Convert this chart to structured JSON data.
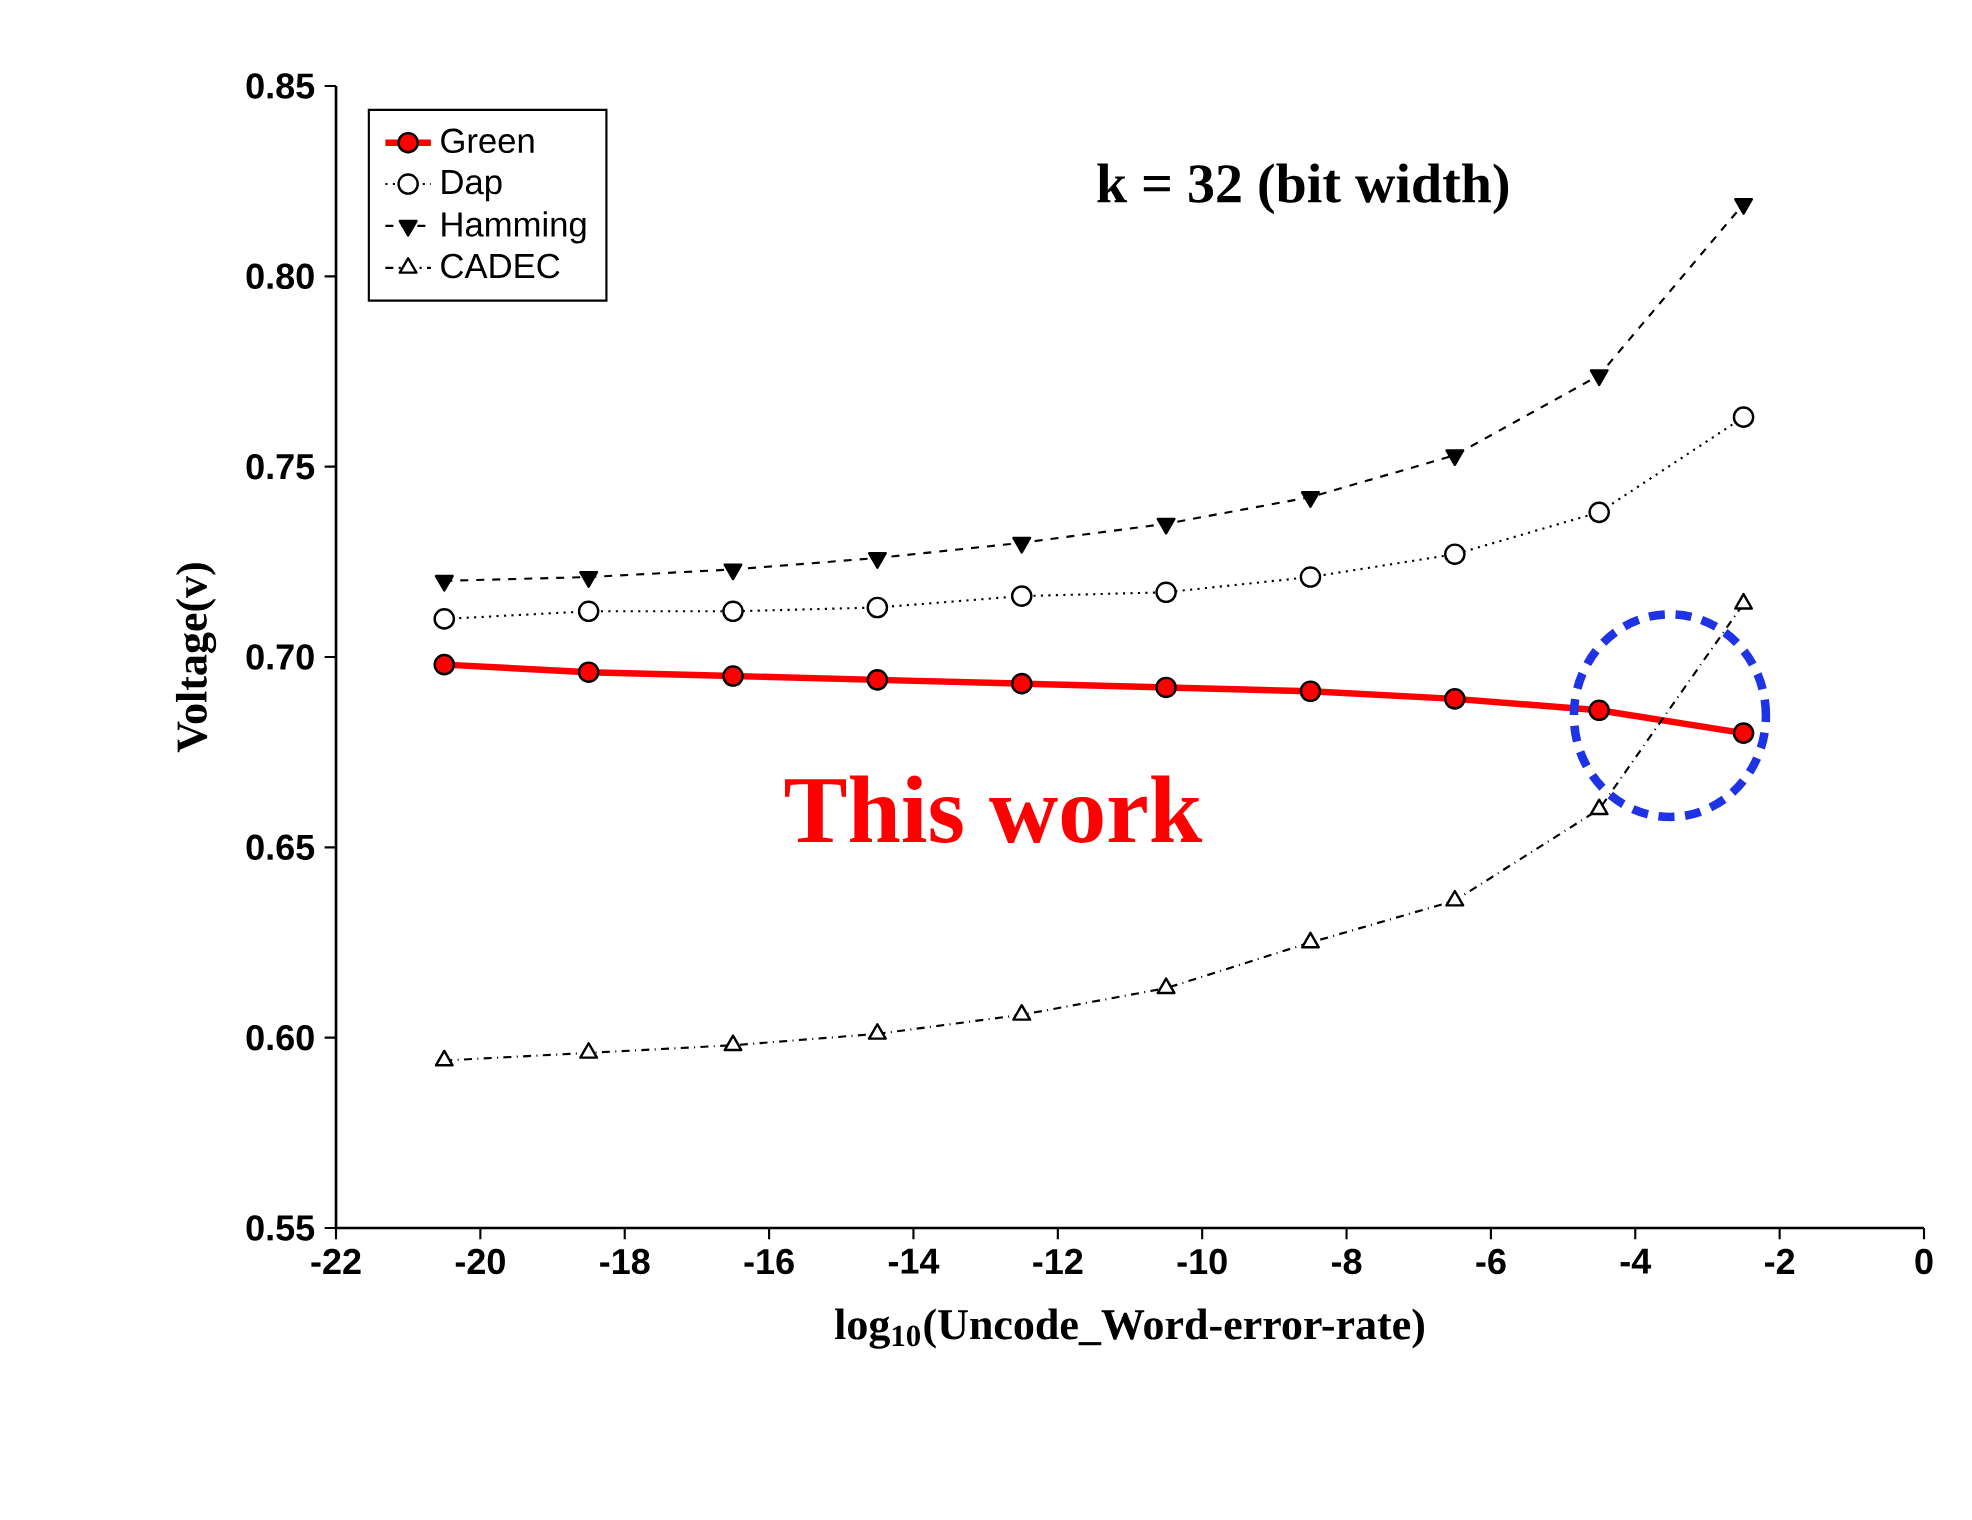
{
  "chart_data": {
    "type": "line",
    "xlabel": "log$_{10}$(Uncode_Word-error-rate)",
    "ylabel": "Voltage(v)",
    "annotations": [
      "k = 32 (bit width)",
      "This work"
    ],
    "x": [
      -20.5,
      -18.5,
      -16.5,
      -14.5,
      -12.5,
      -10.5,
      -8.5,
      -6.5,
      -4.5,
      -2.5
    ],
    "series": [
      {
        "name": "Green",
        "color": "#ff0000",
        "marker": "circle",
        "line_style": "solid",
        "values": [
          0.698,
          0.696,
          0.695,
          0.694,
          0.693,
          0.692,
          0.691,
          0.689,
          0.686,
          0.68
        ]
      },
      {
        "name": "Dap",
        "color": "#000000",
        "marker": "circle",
        "line_style": "dotted",
        "values": [
          0.71,
          0.712,
          0.712,
          0.713,
          0.716,
          0.717,
          0.721,
          0.727,
          0.738,
          0.763
        ]
      },
      {
        "name": "Hamming",
        "color": "#000000",
        "marker": "triangle down",
        "line_style": "dashed",
        "values": [
          0.72,
          0.721,
          0.723,
          0.726,
          0.73,
          0.735,
          0.742,
          0.753,
          0.774,
          0.819
        ]
      },
      {
        "name": "CADEC",
        "color": "#000000",
        "marker": "triangle",
        "line_style": "dashdotted",
        "values": [
          0.594,
          0.596,
          0.598,
          0.601,
          0.606,
          0.613,
          0.625,
          0.636,
          0.66,
          0.714
        ]
      }
    ],
    "xlim": [
      -22,
      0
    ],
    "ylim": [
      0.55,
      0.85
    ],
    "xticks": [
      -22,
      -20,
      -18,
      -16,
      -14,
      -12,
      -10,
      -8,
      -6,
      -4,
      -2,
      0
    ],
    "yticks": [
      0.55,
      {
        "value": 0.6,
        "label": "0.60"
      },
      0.65,
      {
        "value": 0.7,
        "label": "0.70"
      },
      0.75,
      {
        "value": 0.8,
        "label": "0.80"
      },
      0.85
    ],
    "grid": false,
    "legend": "top left"
  }
}
